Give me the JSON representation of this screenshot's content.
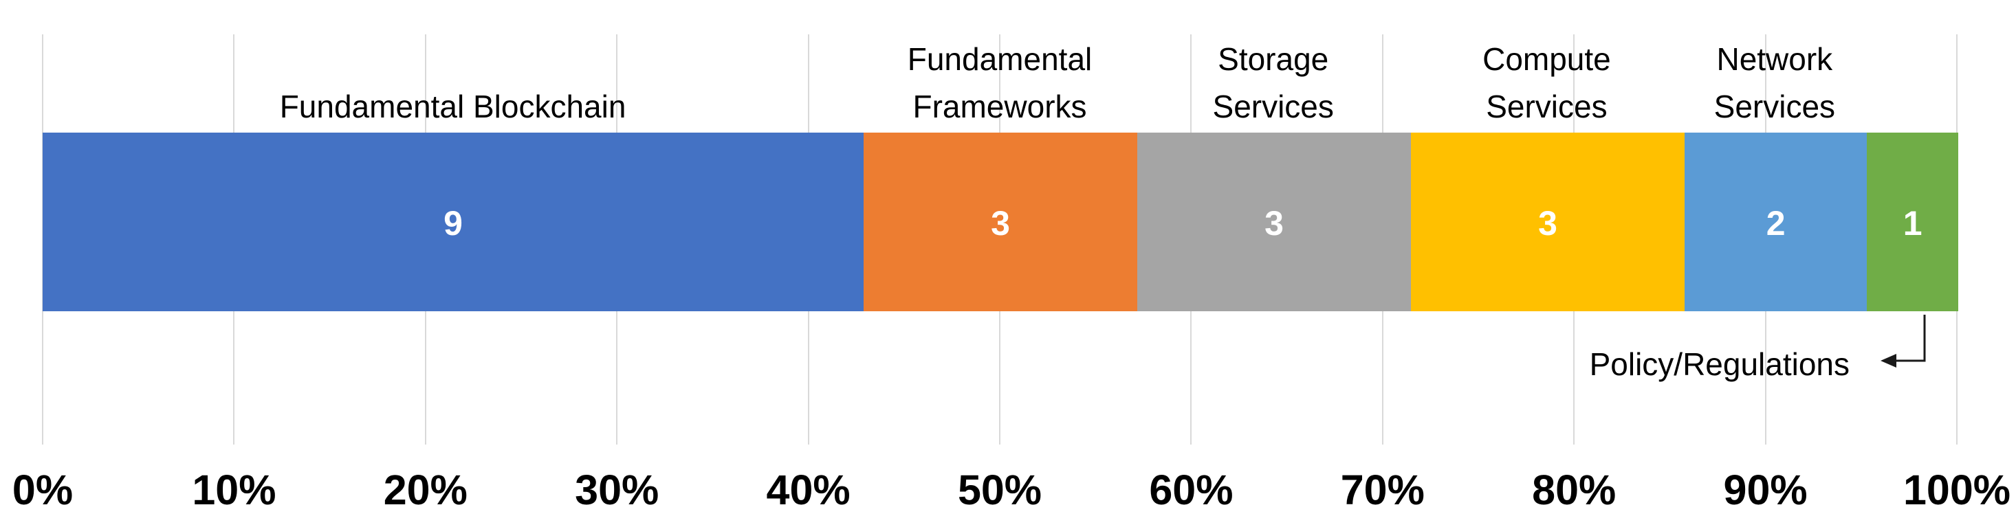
{
  "chart_data": {
    "type": "bar",
    "subtype": "horizontal-stacked",
    "title": "",
    "xlabel": "",
    "ylabel": "",
    "categories": [
      "Fundamental Blockchain",
      "Fundamental Frameworks",
      "Storage Services",
      "Compute Services",
      "Network Services",
      "Policy/Regulations"
    ],
    "values": [
      9,
      3,
      3,
      3,
      2,
      1
    ],
    "segments": [
      {
        "label": "Fundamental Blockchain",
        "label_lines": [
          "Fundamental Blockchain"
        ],
        "value": 9,
        "color": "#4472C4",
        "label_position": "above"
      },
      {
        "label": "Fundamental Frameworks",
        "label_lines": [
          "Fundamental",
          "Frameworks"
        ],
        "value": 3,
        "color": "#ED7D31",
        "label_position": "above"
      },
      {
        "label": "Storage Services",
        "label_lines": [
          "Storage",
          "Services"
        ],
        "value": 3,
        "color": "#A5A5A5",
        "label_position": "above"
      },
      {
        "label": "Compute Services",
        "label_lines": [
          "Compute",
          "Services"
        ],
        "value": 3,
        "color": "#FFC000",
        "label_position": "above"
      },
      {
        "label": "Network Services",
        "label_lines": [
          "Network",
          "Services"
        ],
        "value": 2,
        "color": "#5B9BD5",
        "label_position": "above"
      },
      {
        "label": "Policy/Regulations",
        "label_lines": [
          "Policy/Regulations"
        ],
        "value": 1,
        "color": "#70AD47",
        "label_position": "below-with-arrow"
      }
    ],
    "x_axis": {
      "tick_labels": [
        "0%",
        "10%",
        "20%",
        "30%",
        "40%",
        "50%",
        "60%",
        "70%",
        "80%",
        "90%",
        "100%"
      ],
      "min": 0,
      "max": 100,
      "grid": true
    },
    "legend": false,
    "annotation": {
      "text": "Policy/Regulations",
      "arrow": "elbow-pointing-left"
    }
  },
  "styles": {
    "background": "#FFFFFF",
    "grid_color": "#D9D9D9",
    "text_color": "#000000",
    "value_label_color": "#FFFFFF",
    "arrow_color": "#1a1a1a",
    "segment_colors": [
      "#4472C4",
      "#ED7D31",
      "#A5A5A5",
      "#FFC000",
      "#5B9BD5",
      "#70AD47"
    ]
  }
}
